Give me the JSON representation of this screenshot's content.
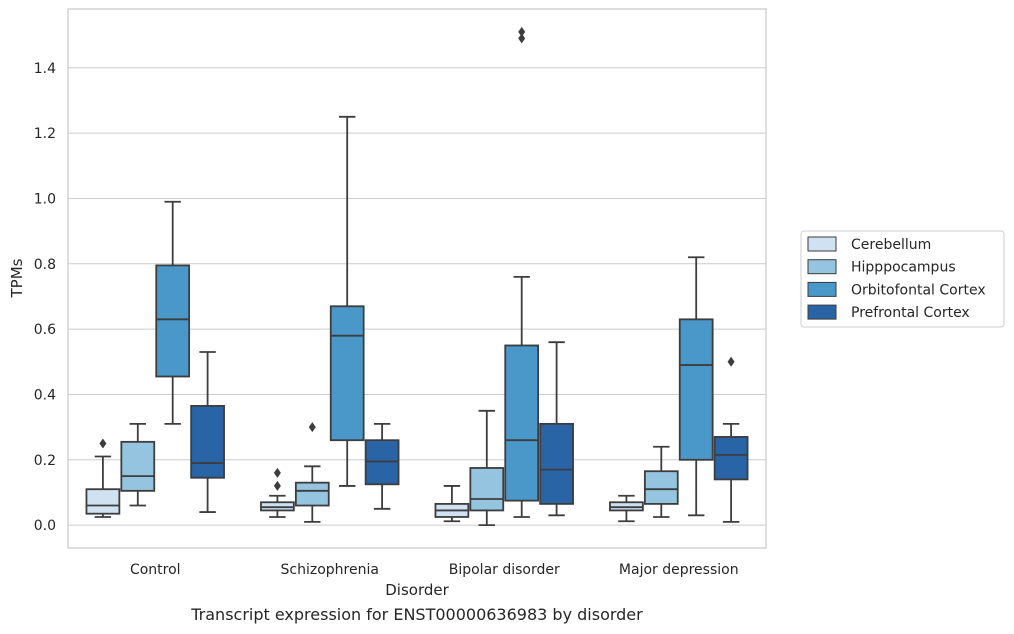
{
  "caption": "Transcript expression for ENST00000636983 by disorder",
  "chart_data": {
    "type": "box",
    "xlabel": "Disorder",
    "ylabel": "TPMs",
    "ylim": [
      -0.07,
      1.58
    ],
    "yticks": [
      0.0,
      0.2,
      0.4,
      0.6,
      0.8,
      1.0,
      1.2,
      1.4
    ],
    "grid": "horizontal",
    "legend_position": "right",
    "categories": [
      "Control",
      "Schizophrenia",
      "Bipolar disorder",
      "Major depression"
    ],
    "series": [
      {
        "name": "Cerebellum",
        "color": "#d0e1f2",
        "boxes": [
          {
            "whislo": 0.025,
            "q1": 0.035,
            "med": 0.06,
            "q3": 0.11,
            "whishi": 0.21,
            "fliers": [
              0.25
            ]
          },
          {
            "whislo": 0.025,
            "q1": 0.045,
            "med": 0.055,
            "q3": 0.07,
            "whishi": 0.09,
            "fliers": [
              0.12,
              0.16
            ]
          },
          {
            "whislo": 0.012,
            "q1": 0.025,
            "med": 0.045,
            "q3": 0.065,
            "whishi": 0.12,
            "fliers": []
          },
          {
            "whislo": 0.012,
            "q1": 0.045,
            "med": 0.055,
            "q3": 0.07,
            "whishi": 0.09,
            "fliers": []
          }
        ]
      },
      {
        "name": "Hipppocampus",
        "color": "#94c4df",
        "boxes": [
          {
            "whislo": 0.06,
            "q1": 0.105,
            "med": 0.15,
            "q3": 0.255,
            "whishi": 0.31,
            "fliers": []
          },
          {
            "whislo": 0.01,
            "q1": 0.06,
            "med": 0.105,
            "q3": 0.13,
            "whishi": 0.18,
            "fliers": [
              0.3
            ]
          },
          {
            "whislo": 0.0,
            "q1": 0.045,
            "med": 0.08,
            "q3": 0.175,
            "whishi": 0.35,
            "fliers": []
          },
          {
            "whislo": 0.025,
            "q1": 0.065,
            "med": 0.11,
            "q3": 0.165,
            "whishi": 0.24,
            "fliers": []
          }
        ]
      },
      {
        "name": "Orbitofontal Cortex",
        "color": "#4a98c9",
        "boxes": [
          {
            "whislo": 0.31,
            "q1": 0.455,
            "med": 0.63,
            "q3": 0.795,
            "whishi": 0.99,
            "fliers": []
          },
          {
            "whislo": 0.12,
            "q1": 0.26,
            "med": 0.58,
            "q3": 0.67,
            "whishi": 1.25,
            "fliers": []
          },
          {
            "whislo": 0.025,
            "q1": 0.075,
            "med": 0.26,
            "q3": 0.55,
            "whishi": 0.76,
            "fliers": [
              1.49,
              1.51
            ]
          },
          {
            "whislo": 0.03,
            "q1": 0.2,
            "med": 0.49,
            "q3": 0.63,
            "whishi": 0.82,
            "fliers": []
          }
        ]
      },
      {
        "name": "Prefrontal Cortex",
        "color": "#2864a6",
        "boxes": [
          {
            "whislo": 0.04,
            "q1": 0.145,
            "med": 0.19,
            "q3": 0.365,
            "whishi": 0.53,
            "fliers": []
          },
          {
            "whislo": 0.05,
            "q1": 0.125,
            "med": 0.195,
            "q3": 0.26,
            "whishi": 0.31,
            "fliers": []
          },
          {
            "whislo": 0.03,
            "q1": 0.065,
            "med": 0.17,
            "q3": 0.31,
            "whishi": 0.56,
            "fliers": []
          },
          {
            "whislo": 0.01,
            "q1": 0.14,
            "med": 0.215,
            "q3": 0.27,
            "whishi": 0.31,
            "fliers": [
              0.5
            ]
          }
        ]
      }
    ]
  }
}
